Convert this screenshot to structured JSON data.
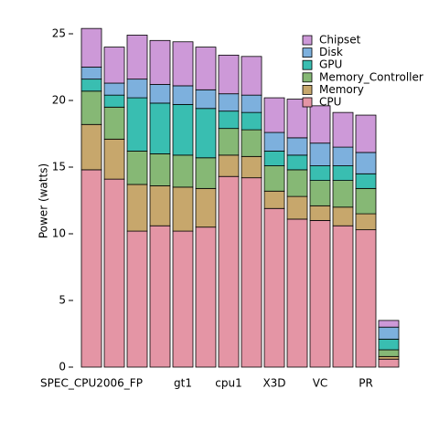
{
  "chart_data": {
    "type": "stacked_bar",
    "y_label": "Power (watts)",
    "categories": [
      "SPEC_CPU2006_FP",
      null,
      null,
      null,
      "gt1",
      null,
      "cpu1",
      null,
      "X3D",
      null,
      "VC",
      null,
      "PR",
      null
    ],
    "series": [
      {
        "name": "CPU",
        "color": "#e495a5",
        "values": [
          14.8,
          14.1,
          10.2,
          10.6,
          10.2,
          10.5,
          14.3,
          14.2,
          11.9,
          11.1,
          11.0,
          10.6,
          10.3,
          0.6
        ]
      },
      {
        "name": "Memory",
        "color": "#c7a76c",
        "values": [
          3.4,
          3.0,
          3.5,
          3.0,
          3.3,
          2.9,
          1.6,
          1.6,
          1.3,
          1.7,
          1.1,
          1.4,
          1.2,
          0.2
        ]
      },
      {
        "name": "Memory_Controller",
        "color": "#86b875",
        "values": [
          2.5,
          2.4,
          2.5,
          2.4,
          2.4,
          2.3,
          2.0,
          2.0,
          1.9,
          2.0,
          1.9,
          2.0,
          1.9,
          0.5
        ]
      },
      {
        "name": "GPU",
        "color": "#39beb1",
        "values": [
          0.9,
          0.9,
          4.0,
          3.8,
          3.8,
          3.7,
          1.3,
          1.3,
          1.1,
          1.1,
          1.1,
          1.1,
          1.1,
          0.8
        ]
      },
      {
        "name": "Disk",
        "color": "#7db0dd",
        "values": [
          0.9,
          0.9,
          1.4,
          1.4,
          1.4,
          1.4,
          1.3,
          1.3,
          1.4,
          1.3,
          1.7,
          1.4,
          1.6,
          0.9
        ]
      },
      {
        "name": "Chipset",
        "color": "#cd99d8",
        "values": [
          2.9,
          2.7,
          3.3,
          3.3,
          3.3,
          3.2,
          2.9,
          2.9,
          2.6,
          2.9,
          2.8,
          2.6,
          2.8,
          0.5
        ]
      }
    ],
    "ylim": [
      0,
      25
    ],
    "yticks": [
      0,
      5,
      10,
      15,
      20,
      25
    ],
    "grid": false,
    "legend": "top-right"
  }
}
